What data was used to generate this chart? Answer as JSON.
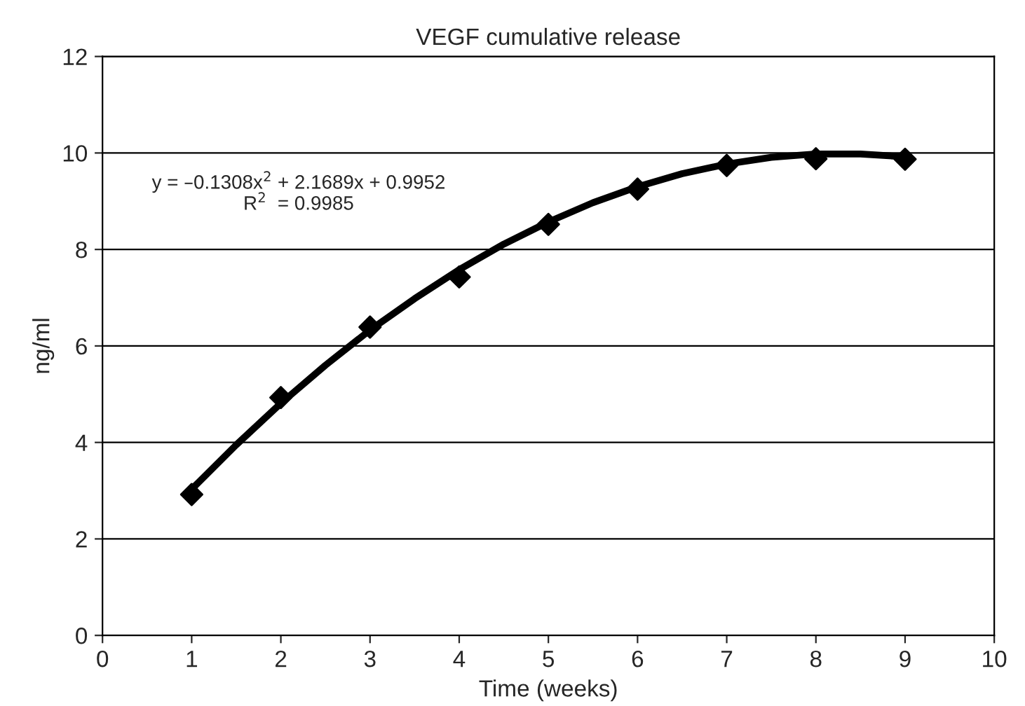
{
  "chart_data": {
    "type": "scatter",
    "title": "VEGF cumulative release",
    "xlabel": "Time (weeks)",
    "ylabel": "ng/ml",
    "x": [
      1,
      2,
      3,
      4,
      5,
      6,
      7,
      8,
      9
    ],
    "series": [
      {
        "color": "#000000",
        "marker": "diamond",
        "values": [
          2.92,
          4.93,
          6.39,
          7.43,
          8.52,
          9.25,
          9.74,
          9.88,
          9.87
        ]
      },
      {
        "type": "line",
        "color": "#000000",
        "line_style": "solid",
        "marker": "none",
        "x": [
          1,
          1.5,
          2,
          2.5,
          3,
          3.5,
          4,
          4.5,
          5,
          5.5,
          6,
          6.5,
          7,
          7.5,
          8,
          8.5,
          9
        ],
        "values": [
          3.03,
          3.95,
          4.81,
          5.6,
          6.33,
          6.98,
          7.58,
          8.11,
          8.57,
          8.97,
          9.3,
          9.57,
          9.77,
          9.91,
          9.98,
          9.98,
          9.92
        ]
      }
    ],
    "annotations": [
      "y = –0.1308x$^{2}$ + 2.1689x + 0.9952\nR$^{2}$  = 0.9985"
    ],
    "xlim": [
      0,
      10
    ],
    "xticks": [
      0,
      1,
      2,
      3,
      4,
      5,
      6,
      7,
      8,
      9,
      10
    ],
    "ylim": [
      0,
      12
    ],
    "yticks": [
      0,
      2,
      4,
      6,
      8,
      10,
      12
    ],
    "grid": "y",
    "legend": false
  }
}
